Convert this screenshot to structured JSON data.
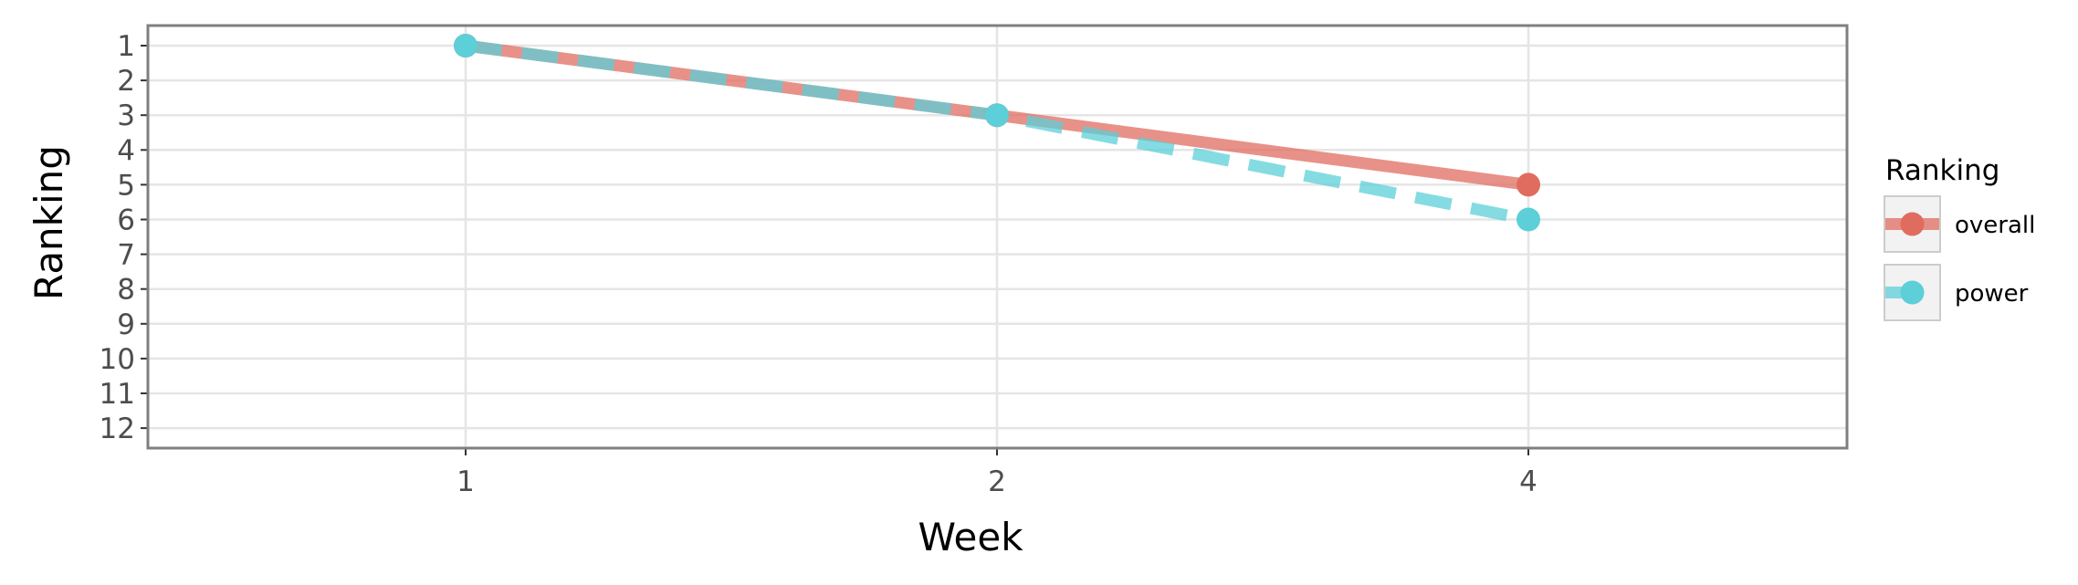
{
  "chart_data": {
    "type": "line",
    "x": [
      1,
      2,
      4
    ],
    "x_ticks": [
      "1",
      "2",
      "4"
    ],
    "y_ticks": [
      "1",
      "2",
      "3",
      "4",
      "5",
      "6",
      "7",
      "8",
      "9",
      "10",
      "11",
      "12"
    ],
    "ylim": [
      1,
      12
    ],
    "y_reversed": true,
    "xlabel": "Week",
    "ylabel": "Ranking",
    "grid": true,
    "legend_title": "Ranking",
    "legend_position": "right",
    "series": [
      {
        "name": "overall",
        "values": [
          1,
          3,
          5
        ],
        "color": "#E06C60",
        "line_style": "solid"
      },
      {
        "name": "power",
        "values": [
          1,
          3,
          6
        ],
        "color": "#5CCFD8",
        "line_style": "dashed"
      }
    ]
  }
}
